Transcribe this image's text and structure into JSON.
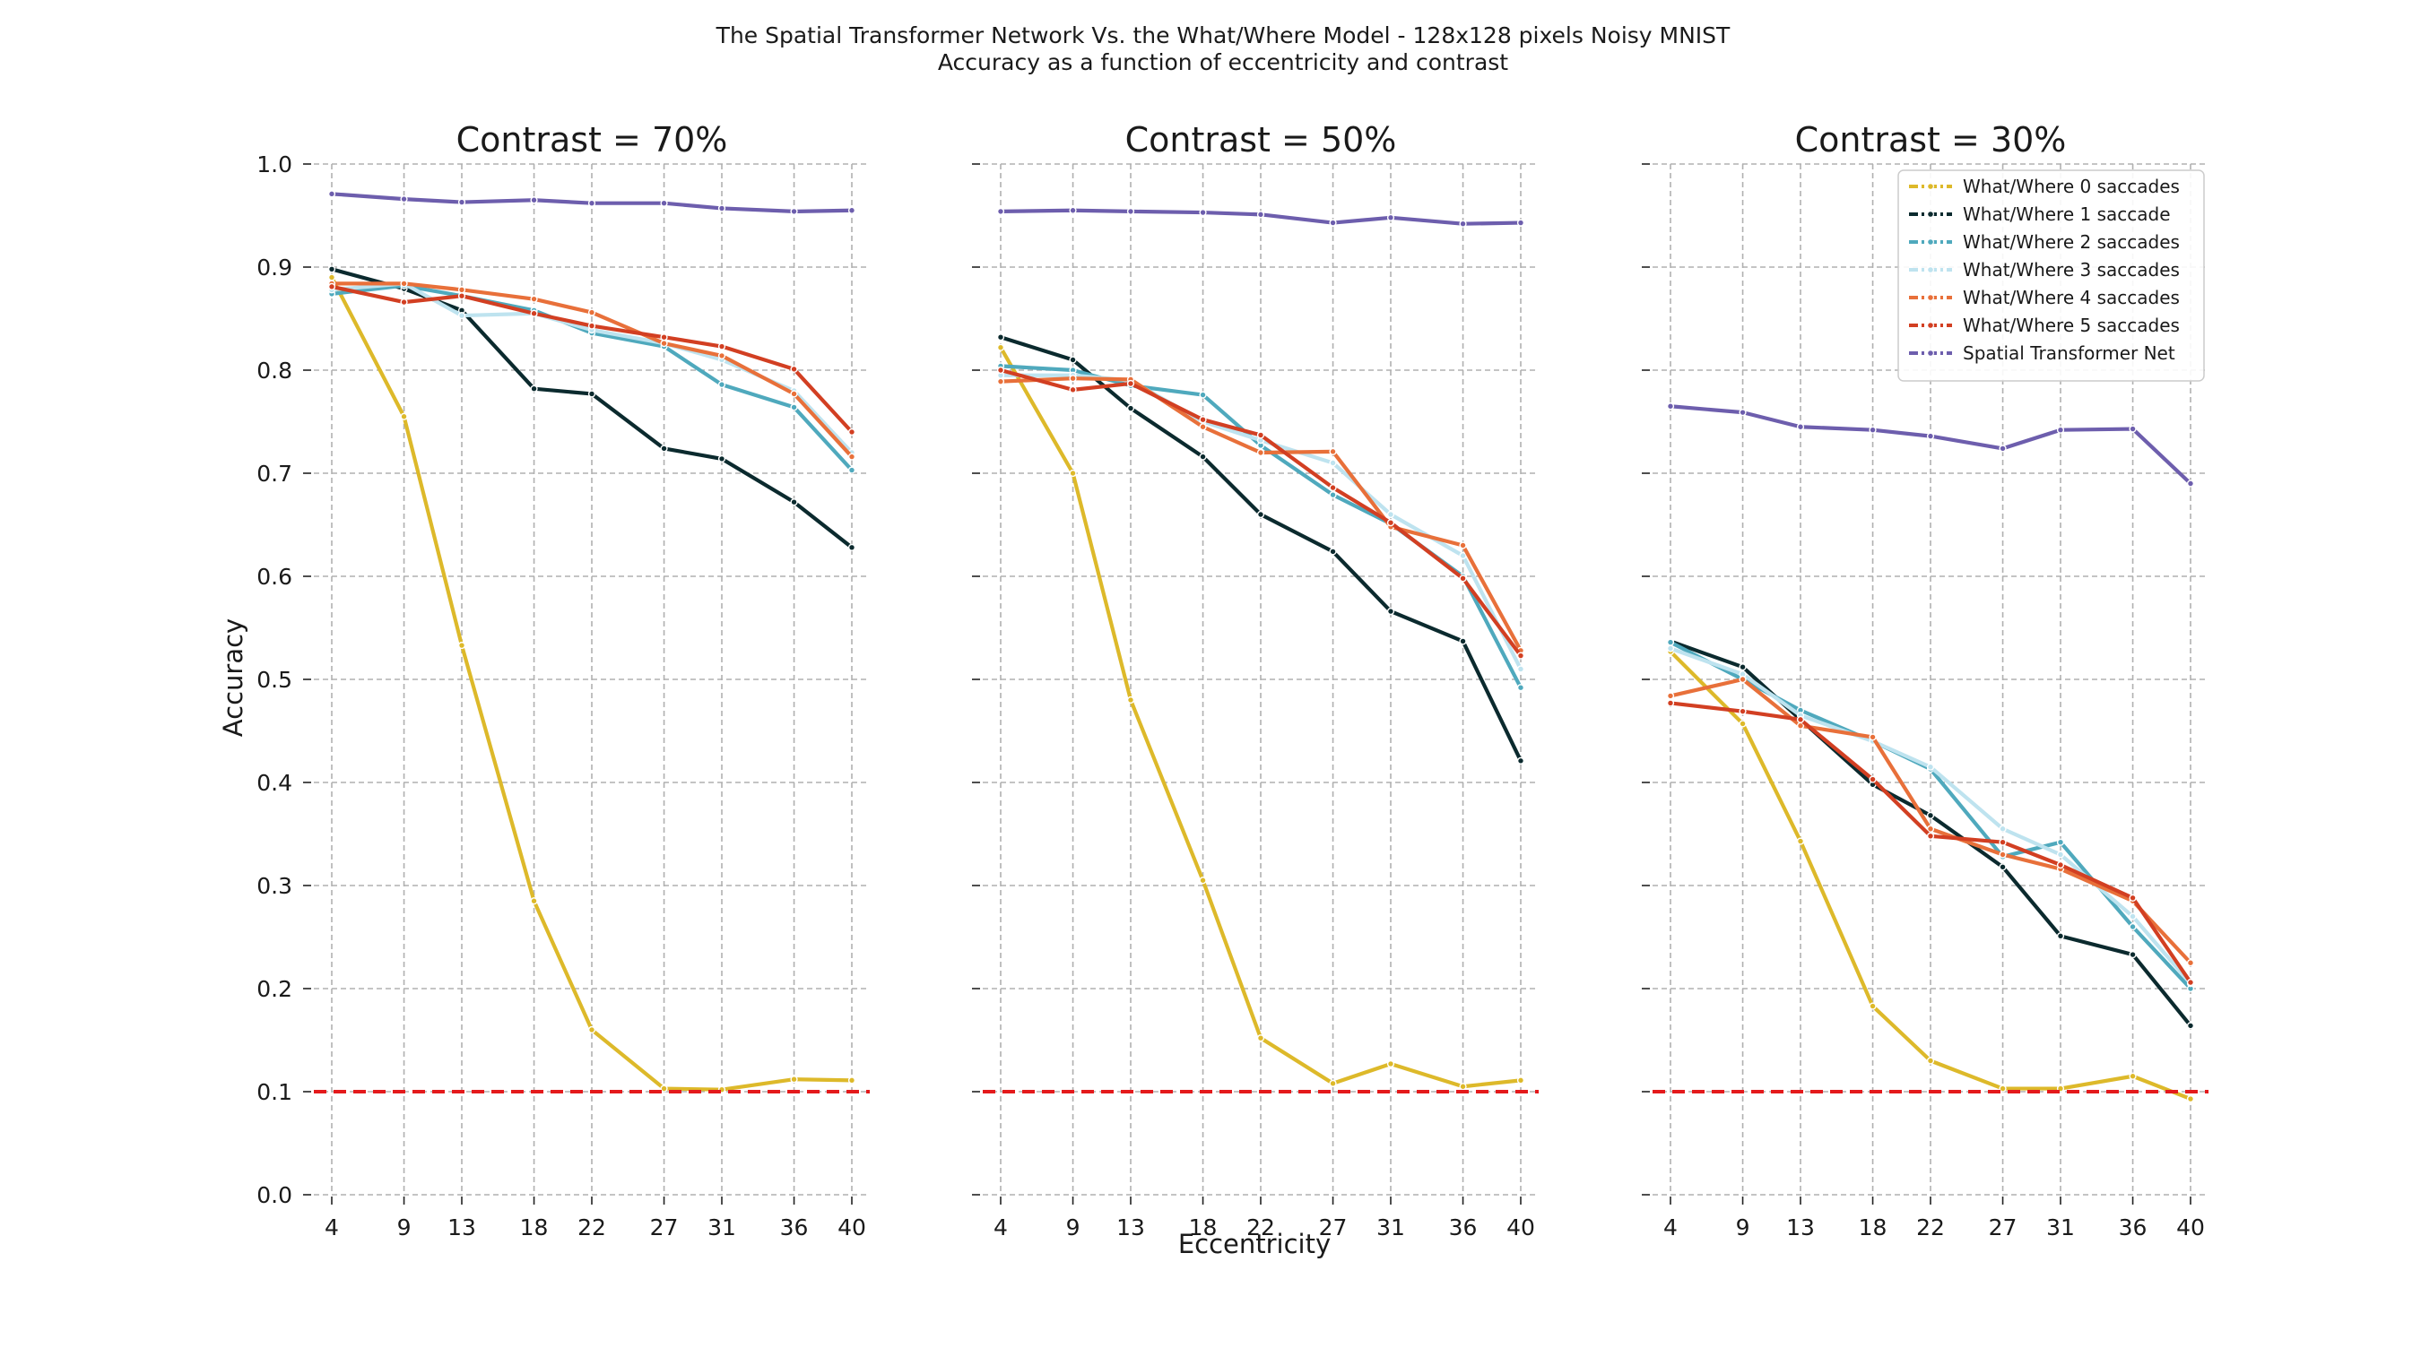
{
  "figure": {
    "suptitle": "The Spatial Transformer Network Vs. the What/Where Model - 128x128 pixels Noisy MNIST",
    "subtitle": "Accuracy as a function of eccentricity and contrast",
    "xlabel": "Eccentricity",
    "ylabel": "Accuracy"
  },
  "legend": {
    "placement": "upper-right of third panel",
    "entries": [
      {
        "label": "What/Where 0 saccades",
        "color": "#DDB92A"
      },
      {
        "label": "What/Where 1 saccade",
        "color": "#0B2A2E"
      },
      {
        "label": "What/Where 2 saccades",
        "color": "#4FA9BD"
      },
      {
        "label": "What/Where 3 saccades",
        "color": "#BEE3EF"
      },
      {
        "label": "What/Where 4 saccades",
        "color": "#E8703A"
      },
      {
        "label": "What/Where 5 saccades",
        "color": "#D23F22"
      },
      {
        "label": "Spatial Transformer Net",
        "color": "#6D5EAD"
      }
    ]
  },
  "chart_data": [
    {
      "type": "line",
      "title": "Contrast = 70%",
      "x": [
        4,
        9,
        13,
        18,
        22,
        27,
        31,
        36,
        40
      ],
      "xticklabels": [
        "4",
        "9",
        "13",
        "18",
        "22",
        "27",
        "31",
        "36",
        "40"
      ],
      "ylim": [
        0.0,
        1.0
      ],
      "yticklabels": [
        "0.0",
        "0.1",
        "0.2",
        "0.3",
        "0.4",
        "0.5",
        "0.6",
        "0.7",
        "0.8",
        "0.9",
        "1.0"
      ],
      "grid": true,
      "chance_level": 0.1,
      "chance_color": "#E41A1C",
      "series": [
        {
          "name": "What/Where 0 saccades",
          "color": "#DDB92A",
          "values": [
            0.89,
            0.755,
            0.533,
            0.285,
            0.16,
            0.103,
            0.102,
            0.112,
            0.111
          ]
        },
        {
          "name": "What/Where 1 saccade",
          "color": "#0B2A2E",
          "values": [
            0.898,
            0.879,
            0.858,
            0.782,
            0.777,
            0.724,
            0.714,
            0.672,
            0.628
          ]
        },
        {
          "name": "What/Where 2 saccades",
          "color": "#4FA9BD",
          "values": [
            0.874,
            0.882,
            0.872,
            0.858,
            0.836,
            0.823,
            0.786,
            0.764,
            0.703
          ]
        },
        {
          "name": "What/Where 3 saccades",
          "color": "#BEE3EF",
          "values": [
            0.878,
            0.884,
            0.853,
            0.855,
            0.839,
            0.826,
            0.81,
            0.78,
            0.72
          ]
        },
        {
          "name": "What/Where 4 saccades",
          "color": "#E8703A",
          "values": [
            0.884,
            0.884,
            0.878,
            0.869,
            0.856,
            0.826,
            0.814,
            0.777,
            0.716
          ]
        },
        {
          "name": "What/Where 5 saccades",
          "color": "#D23F22",
          "values": [
            0.881,
            0.866,
            0.872,
            0.855,
            0.843,
            0.832,
            0.823,
            0.801,
            0.74
          ]
        },
        {
          "name": "Spatial Transformer Net",
          "color": "#6D5EAD",
          "values": [
            0.971,
            0.966,
            0.963,
            0.965,
            0.962,
            0.962,
            0.957,
            0.954,
            0.955
          ]
        }
      ]
    },
    {
      "type": "line",
      "title": "Contrast = 50%",
      "x": [
        4,
        9,
        13,
        18,
        22,
        27,
        31,
        36,
        40
      ],
      "xticklabels": [
        "4",
        "9",
        "13",
        "18",
        "22",
        "27",
        "31",
        "36",
        "40"
      ],
      "ylim": [
        0.0,
        1.0
      ],
      "grid": true,
      "chance_level": 0.1,
      "chance_color": "#E41A1C",
      "series": [
        {
          "name": "What/Where 0 saccades",
          "color": "#DDB92A",
          "values": [
            0.822,
            0.7,
            0.48,
            0.305,
            0.152,
            0.108,
            0.127,
            0.105,
            0.111
          ]
        },
        {
          "name": "What/Where 1 saccade",
          "color": "#0B2A2E",
          "values": [
            0.832,
            0.81,
            0.763,
            0.716,
            0.66,
            0.624,
            0.566,
            0.537,
            0.421
          ]
        },
        {
          "name": "What/Where 2 saccades",
          "color": "#4FA9BD",
          "values": [
            0.804,
            0.8,
            0.785,
            0.776,
            0.727,
            0.679,
            0.651,
            0.6,
            0.492
          ]
        },
        {
          "name": "What/Where 3 saccades",
          "color": "#BEE3EF",
          "values": [
            0.795,
            0.795,
            0.79,
            0.75,
            0.732,
            0.71,
            0.66,
            0.62,
            0.51
          ]
        },
        {
          "name": "What/Where 4 saccades",
          "color": "#E8703A",
          "values": [
            0.789,
            0.792,
            0.791,
            0.745,
            0.72,
            0.721,
            0.648,
            0.63,
            0.528
          ]
        },
        {
          "name": "What/Where 5 saccades",
          "color": "#D23F22",
          "values": [
            0.8,
            0.781,
            0.787,
            0.752,
            0.737,
            0.686,
            0.652,
            0.598,
            0.523
          ]
        },
        {
          "name": "Spatial Transformer Net",
          "color": "#6D5EAD",
          "values": [
            0.954,
            0.955,
            0.954,
            0.953,
            0.951,
            0.943,
            0.948,
            0.942,
            0.943
          ]
        }
      ]
    },
    {
      "type": "line",
      "title": "Contrast = 30%",
      "x": [
        4,
        9,
        13,
        18,
        22,
        27,
        31,
        36,
        40
      ],
      "xticklabels": [
        "4",
        "9",
        "13",
        "18",
        "22",
        "27",
        "31",
        "36",
        "40"
      ],
      "ylim": [
        0.0,
        1.0
      ],
      "grid": true,
      "chance_level": 0.1,
      "chance_color": "#E41A1C",
      "series": [
        {
          "name": "What/Where 0 saccades",
          "color": "#DDB92A",
          "values": [
            0.527,
            0.457,
            0.343,
            0.183,
            0.13,
            0.103,
            0.103,
            0.115,
            0.093
          ]
        },
        {
          "name": "What/Where 1 saccade",
          "color": "#0B2A2E",
          "values": [
            0.537,
            0.512,
            0.461,
            0.398,
            0.368,
            0.318,
            0.251,
            0.233,
            0.164
          ]
        },
        {
          "name": "What/Where 2 saccades",
          "color": "#4FA9BD",
          "values": [
            0.536,
            0.5,
            0.47,
            0.44,
            0.413,
            0.328,
            0.342,
            0.26,
            0.2
          ]
        },
        {
          "name": "What/Where 3 saccades",
          "color": "#BEE3EF",
          "values": [
            0.53,
            0.505,
            0.465,
            0.44,
            0.415,
            0.355,
            0.33,
            0.27,
            0.205
          ]
        },
        {
          "name": "What/Where 4 saccades",
          "color": "#E8703A",
          "values": [
            0.484,
            0.5,
            0.455,
            0.444,
            0.355,
            0.33,
            0.316,
            0.285,
            0.225
          ]
        },
        {
          "name": "What/Where 5 saccades",
          "color": "#D23F22",
          "values": [
            0.477,
            0.469,
            0.461,
            0.403,
            0.348,
            0.342,
            0.32,
            0.288,
            0.206
          ]
        },
        {
          "name": "Spatial Transformer Net",
          "color": "#6D5EAD",
          "values": [
            0.765,
            0.759,
            0.745,
            0.742,
            0.736,
            0.724,
            0.742,
            0.743,
            0.69
          ]
        }
      ]
    }
  ]
}
